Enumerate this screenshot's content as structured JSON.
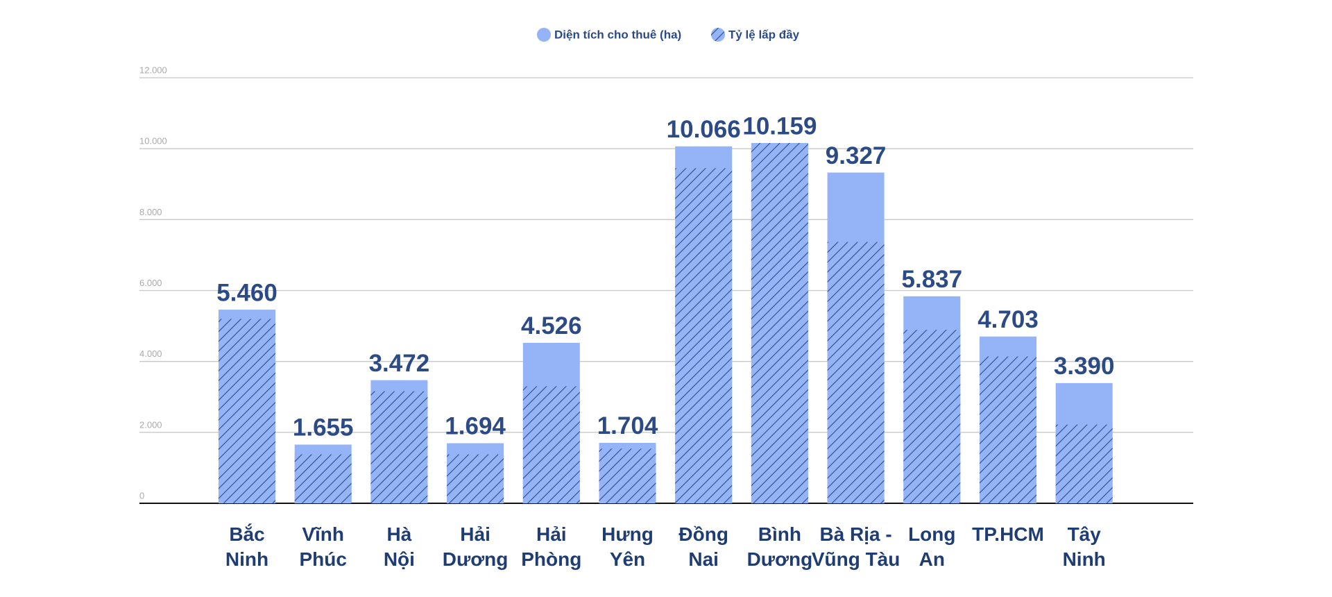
{
  "chart_data": {
    "type": "bar",
    "categories": [
      "Bắc\nNinh",
      "Vĩnh\nPhúc",
      "Hà\nNội",
      "Hải\nDương",
      "Hải\nPhòng",
      "Hưng\nYên",
      "Đồng\nNai",
      "Bình\nDương",
      "Bà Rịa -\nVũng Tàu",
      "Long\nAn",
      "TP.HCM",
      "Tây\nNinh"
    ],
    "series": [
      {
        "name": "Diện tích cho thuê (ha)",
        "color": "#94b4f7",
        "values": [
          5460,
          1655,
          3472,
          1694,
          4526,
          1704,
          10066,
          10159,
          9327,
          5837,
          4703,
          3390
        ],
        "value_labels": [
          "5.460",
          "1.655",
          "3.472",
          "1.694",
          "4.526",
          "1.704",
          "10.066",
          "10.159",
          "9.327",
          "5.837",
          "4.703",
          "3.390"
        ]
      },
      {
        "name": "Tỷ lệ lấp đầy",
        "color": "#2b4a86",
        "values": [
          5200,
          1380,
          3160,
          1380,
          3300,
          1540,
          9450,
          10159,
          7370,
          4890,
          4140,
          2220
        ]
      }
    ],
    "ylim": [
      0,
      12000
    ],
    "yticks": [
      0,
      {
        "value": 2000,
        "label": "2.000"
      },
      {
        "value": 4000,
        "label": "4.000"
      },
      {
        "value": 6000,
        "label": "6.000"
      },
      {
        "value": 8000,
        "label": "8.000"
      },
      {
        "value": 10000,
        "label": "10.000"
      },
      {
        "value": 12000,
        "label": "12.000"
      }
    ],
    "grid": true
  }
}
